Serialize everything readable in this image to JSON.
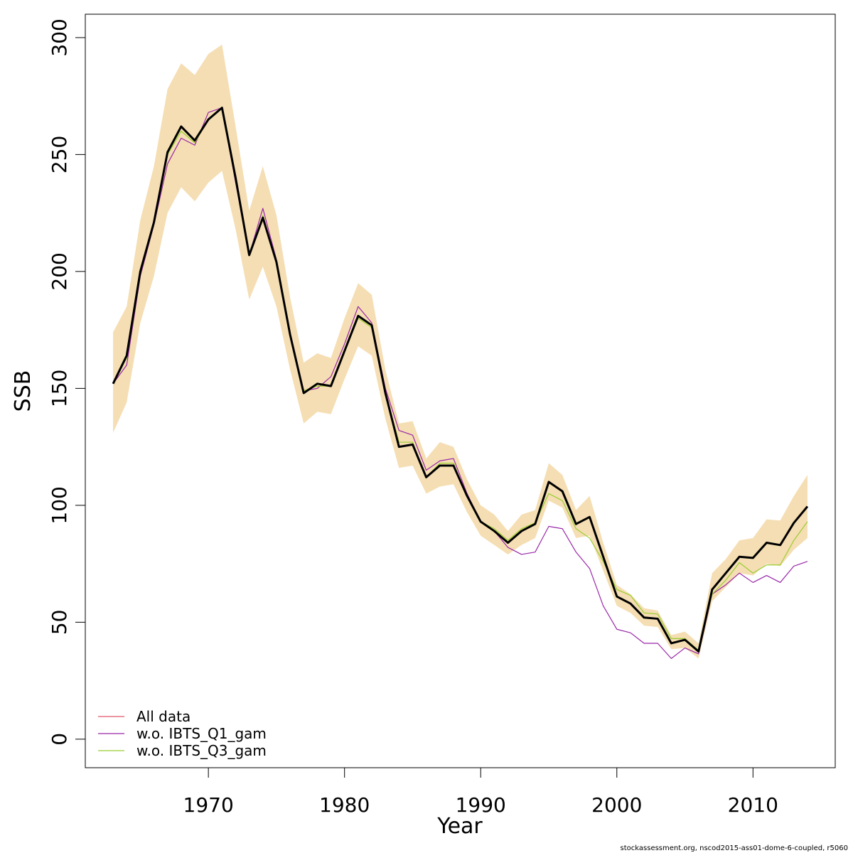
{
  "chart_data": {
    "type": "line",
    "xlabel": "Year",
    "ylabel": "SSB",
    "footer": "stockassessment.org, nscod2015-ass01-dome-6-coupled, r5060",
    "x": [
      1963,
      1964,
      1965,
      1966,
      1967,
      1968,
      1969,
      1970,
      1971,
      1972,
      1973,
      1974,
      1975,
      1976,
      1977,
      1978,
      1979,
      1980,
      1981,
      1982,
      1983,
      1984,
      1985,
      1986,
      1987,
      1988,
      1989,
      1990,
      1991,
      1992,
      1993,
      1994,
      1995,
      1996,
      1997,
      1998,
      1999,
      2000,
      2001,
      2002,
      2003,
      2004,
      2005,
      2006,
      2007,
      2008,
      2009,
      2010,
      2011,
      2012,
      2013,
      2014
    ],
    "band_color": "#f5deb3",
    "band_upper": [
      174,
      185,
      222,
      245,
      278,
      289,
      284,
      293,
      297,
      262,
      226,
      245,
      224,
      189,
      161,
      165,
      163,
      180,
      195,
      190,
      158,
      135,
      136,
      120,
      127,
      125,
      111,
      100,
      96,
      89,
      96,
      98,
      118,
      113,
      98,
      104,
      84,
      66,
      62,
      56,
      55,
      44.5,
      46,
      41,
      71,
      77,
      85,
      86,
      94,
      93.5,
      104,
      113
    ],
    "band_lower": [
      131,
      144,
      178,
      198,
      225,
      236,
      230,
      238,
      243,
      218,
      188,
      202,
      185,
      158,
      135,
      140,
      139,
      154,
      168,
      164,
      137,
      116,
      117,
      105,
      108,
      109,
      97,
      87,
      83,
      79,
      83,
      86,
      102,
      99,
      86,
      87,
      72,
      57,
      54,
      48.5,
      48,
      38.5,
      39,
      34.5,
      59,
      65,
      71,
      70,
      75,
      74,
      81,
      86
    ],
    "series": [
      {
        "name": "All data",
        "color": "#df536b",
        "values": [
          152,
          164,
          200,
          221,
          251,
          262,
          256,
          265,
          270,
          240,
          207,
          223,
          204,
          173,
          148,
          152,
          151,
          166,
          181,
          177,
          148,
          125,
          126,
          112,
          117,
          117,
          104,
          93,
          89,
          84,
          89,
          92,
          110,
          106,
          92,
          95,
          78,
          61,
          58,
          52,
          51.5,
          41,
          42.5,
          37.5,
          64,
          71,
          78,
          77.5,
          84,
          83,
          92.5,
          99.5
        ]
      },
      {
        "name": "w.o. IBTS_Q1_gam",
        "color": "#9928a8",
        "values": [
          152,
          160,
          198,
          220,
          246,
          257,
          254,
          268,
          270,
          238,
          207,
          227,
          205,
          174,
          149,
          150,
          155,
          169,
          185,
          178,
          150,
          132,
          130,
          115,
          119,
          120,
          105,
          93,
          89,
          82,
          79,
          80,
          91,
          90,
          80,
          73,
          57,
          47,
          45.5,
          41,
          41,
          34.5,
          39,
          36.5,
          62,
          66,
          71,
          67,
          70,
          67,
          74,
          76
        ]
      },
      {
        "name": "w.o. IBTS_Q3_gam",
        "color": "#9acd32",
        "values": [
          152,
          163,
          200,
          221,
          250,
          260,
          255,
          265,
          270,
          240,
          207,
          224,
          204,
          173,
          149,
          151,
          151,
          166,
          180,
          176,
          148,
          127,
          127,
          112,
          118,
          118,
          104,
          93,
          90,
          85,
          90,
          92.5,
          105,
          102,
          90,
          86,
          76,
          64,
          61.5,
          54,
          53.5,
          43,
          43,
          38,
          62,
          68,
          75.5,
          71,
          74.5,
          74.5,
          85,
          93
        ]
      }
    ],
    "estimate": {
      "color": "#000000",
      "values": [
        152,
        164,
        200,
        221,
        251,
        262,
        256,
        265,
        270,
        240,
        207,
        223,
        204,
        173,
        148,
        152,
        151,
        166,
        181,
        177,
        148,
        125,
        126,
        112,
        117,
        117,
        104,
        93,
        89,
        84,
        89,
        92,
        110,
        106,
        92,
        95,
        78,
        61,
        58,
        52,
        51.5,
        41,
        42.5,
        37.5,
        64,
        71,
        78,
        77.5,
        84,
        83,
        92.5,
        99.5
      ]
    },
    "xlim": [
      1960.96,
      2016.04
    ],
    "ylim": [
      -12.2,
      310
    ],
    "xticks": [
      1970,
      1980,
      1990,
      2000,
      2010
    ],
    "yticks": [
      0,
      50,
      100,
      150,
      200,
      250,
      300
    ],
    "legend": "bottom-left"
  }
}
